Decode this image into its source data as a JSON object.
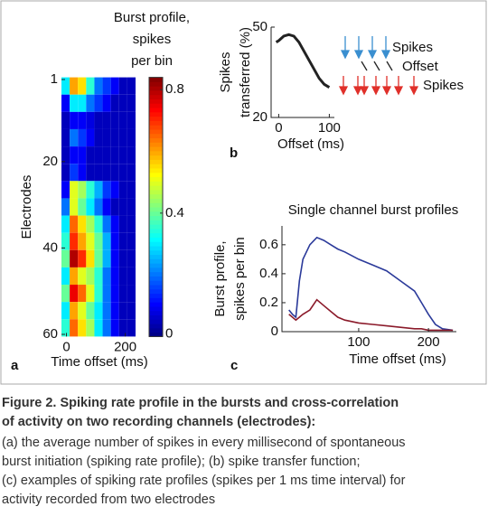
{
  "chart_data": [
    {
      "type": "heatmap",
      "panel_label": "a",
      "colorbar_title": [
        "Burst profile,",
        "spikes",
        "per bin"
      ],
      "xlabel": "Time offset (ms)",
      "ylabel": "Electrodes",
      "x": [
        -3,
        25,
        53,
        81,
        109,
        137,
        165,
        193,
        221
      ],
      "y": [
        2.5,
        6.5,
        10.5,
        14.5,
        18.5,
        22.5,
        26.5,
        30.5,
        34.5,
        38.5,
        42.5,
        46.5,
        50.5,
        54.5,
        58.5
      ],
      "z": [
        [
          0.3,
          0.6,
          0.55,
          0.35,
          0.2,
          0.15,
          0.1,
          0.05,
          0.05
        ],
        [
          0.1,
          0.3,
          0.3,
          0.2,
          0.15,
          0.1,
          0.05,
          0.05,
          0.05
        ],
        [
          0.05,
          0.1,
          0.1,
          0.08,
          0.05,
          0.05,
          0.05,
          0.05,
          0.05
        ],
        [
          0.05,
          0.2,
          0.15,
          0.1,
          0.05,
          0.05,
          0.05,
          0.05,
          0.05
        ],
        [
          0.05,
          0.1,
          0.1,
          0.05,
          0.05,
          0.05,
          0.05,
          0.05,
          0.05
        ],
        [
          0.05,
          0.15,
          0.1,
          0.05,
          0.05,
          0.05,
          0.05,
          0.05,
          0.05
        ],
        [
          0.1,
          0.5,
          0.45,
          0.35,
          0.25,
          0.15,
          0.1,
          0.05,
          0.05
        ],
        [
          0.2,
          0.5,
          0.4,
          0.3,
          0.2,
          0.1,
          0.05,
          0.05,
          0.05
        ],
        [
          0.3,
          0.65,
          0.55,
          0.45,
          0.35,
          0.2,
          0.1,
          0.05,
          0.05
        ],
        [
          0.35,
          0.7,
          0.6,
          0.5,
          0.4,
          0.25,
          0.1,
          0.05,
          0.05
        ],
        [
          0.4,
          0.8,
          0.7,
          0.55,
          0.4,
          0.25,
          0.1,
          0.05,
          0.05
        ],
        [
          0.3,
          0.6,
          0.5,
          0.45,
          0.35,
          0.2,
          0.1,
          0.05,
          0.05
        ],
        [
          0.4,
          0.75,
          0.65,
          0.5,
          0.35,
          0.2,
          0.1,
          0.05,
          0.05
        ],
        [
          0.3,
          0.6,
          0.5,
          0.4,
          0.3,
          0.2,
          0.1,
          0.05,
          0.05
        ],
        [
          0.35,
          0.65,
          0.55,
          0.45,
          0.3,
          0.2,
          0.1,
          0.05,
          0.05
        ]
      ],
      "xlim": [
        -17,
        235
      ],
      "xticks": [
        0,
        200
      ],
      "ylim": [
        0.5,
        60.5
      ],
      "yticks": [
        1,
        20,
        40,
        60
      ],
      "y_reversed": true,
      "zlim": [
        0,
        0.84
      ],
      "zticks": [
        0,
        0.4,
        0.8
      ],
      "colormap": "jet"
    },
    {
      "type": "line",
      "panel_label": "b",
      "ylabel": [
        "Spikes",
        "transferred (%)"
      ],
      "xlabel": "Offset (ms)",
      "x": [
        -5,
        0,
        10,
        20,
        30,
        40,
        50,
        60,
        70,
        80,
        90,
        100
      ],
      "series": [
        {
          "color": "#222222",
          "values": [
            45,
            45.5,
            47,
            47.5,
            47,
            45,
            42,
            39,
            36,
            33,
            31,
            30
          ]
        }
      ],
      "xlim": [
        -15,
        110
      ],
      "xticks": [
        0,
        100
      ],
      "ylim": [
        20,
        50
      ],
      "yticks": [
        20,
        50
      ],
      "annotations": [
        "Spikes",
        "Offset",
        "Spikes"
      ]
    },
    {
      "type": "line",
      "panel_label": "c",
      "title": "Single channel burst profiles",
      "ylabel": [
        "Burst profile,",
        "spikes per bin"
      ],
      "xlabel": "Time offset (ms)",
      "x": [
        0,
        5,
        10,
        15,
        20,
        30,
        40,
        50,
        60,
        70,
        80,
        100,
        120,
        140,
        160,
        180,
        190,
        200,
        210,
        220,
        235
      ],
      "series": [
        {
          "color": "#2b3a9a",
          "values": [
            0.15,
            0.12,
            0.1,
            0.35,
            0.5,
            0.6,
            0.65,
            0.63,
            0.6,
            0.57,
            0.55,
            0.5,
            0.46,
            0.42,
            0.35,
            0.28,
            0.2,
            0.12,
            0.05,
            0.02,
            0.01
          ]
        },
        {
          "color": "#8b1a2a",
          "values": [
            0.12,
            0.1,
            0.08,
            0.1,
            0.12,
            0.15,
            0.22,
            0.18,
            0.14,
            0.1,
            0.08,
            0.06,
            0.05,
            0.04,
            0.03,
            0.02,
            0.02,
            0.01,
            0.01,
            0.01,
            0.01
          ]
        }
      ],
      "xlim": [
        -10,
        240
      ],
      "xticks": [
        100,
        200
      ],
      "ylim": [
        0,
        0.73
      ],
      "yticks": [
        0,
        0.2,
        0.4,
        0.6
      ]
    }
  ],
  "caption": {
    "title": [
      "Figure 2. Spiking rate profile in the bursts and cross-correlation",
      "of activity on two recording channels (electrodes):"
    ],
    "body": [
      "(a) the average number of spikes in every millisecond of spontaneous",
      "burst initiation (spiking rate profile); (b) spike transfer function;",
      "(c) examples of spiking rate profiles (spikes per 1 ms time interval) for",
      "activity recorded from two electrodes"
    ]
  }
}
